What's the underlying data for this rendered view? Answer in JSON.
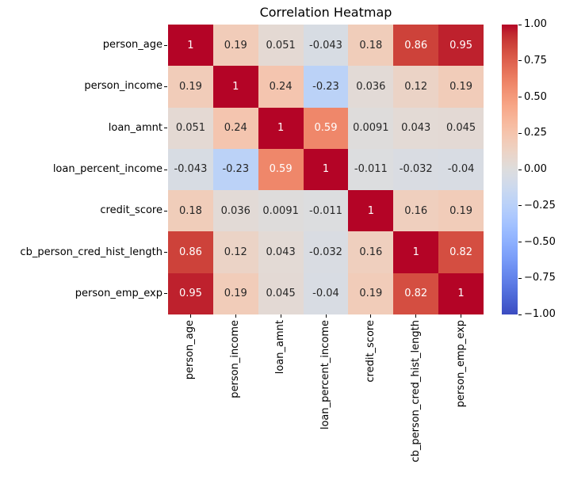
{
  "title": "Correlation Heatmap",
  "chart_data": {
    "type": "heatmap",
    "categories": [
      "person_age",
      "person_income",
      "loan_amnt",
      "loan_percent_income",
      "credit_score",
      "cb_person_cred_hist_length",
      "person_emp_exp"
    ],
    "matrix": [
      [
        1,
        0.19,
        0.051,
        -0.043,
        0.18,
        0.86,
        0.95
      ],
      [
        0.19,
        1,
        0.24,
        -0.23,
        0.036,
        0.12,
        0.19
      ],
      [
        0.051,
        0.24,
        1,
        0.59,
        0.0091,
        0.043,
        0.045
      ],
      [
        -0.043,
        -0.23,
        0.59,
        1,
        -0.011,
        -0.032,
        -0.04
      ],
      [
        0.18,
        0.036,
        0.0091,
        -0.011,
        1,
        0.16,
        0.19
      ],
      [
        0.86,
        0.12,
        0.043,
        -0.032,
        0.16,
        1,
        0.82
      ],
      [
        0.95,
        0.19,
        0.045,
        -0.04,
        0.19,
        0.82,
        1
      ]
    ],
    "vmin": -1,
    "vmax": 1,
    "colormap": "coolwarm",
    "annotation_format": "2 significant digits",
    "colorbar_position": "right",
    "colorbar_ticks": [
      "1.00",
      "0.75",
      "0.50",
      "0.25",
      "0.00",
      "−0.25",
      "−0.50",
      "−0.75",
      "−1.00"
    ],
    "grid": false
  },
  "colors": {
    "background": "#ffffff",
    "axis_text": "#000000",
    "annotation_dark": "#262626",
    "annotation_light": "#ffffff",
    "coolwarm_rgb": [
      [
        59,
        76,
        192
      ],
      [
        68,
        90,
        204
      ],
      [
        77,
        104,
        215
      ],
      [
        87,
        117,
        225
      ],
      [
        98,
        130,
        234
      ],
      [
        108,
        142,
        241
      ],
      [
        119,
        154,
        247
      ],
      [
        130,
        165,
        251
      ],
      [
        141,
        176,
        254
      ],
      [
        152,
        185,
        255
      ],
      [
        163,
        194,
        255
      ],
      [
        174,
        201,
        253
      ],
      [
        184,
        208,
        249
      ],
      [
        194,
        213,
        244
      ],
      [
        204,
        217,
        238
      ],
      [
        213,
        219,
        230
      ],
      [
        221,
        221,
        221
      ],
      [
        229,
        216,
        209
      ],
      [
        236,
        211,
        197
      ],
      [
        241,
        204,
        185
      ],
      [
        245,
        196,
        173
      ],
      [
        247,
        187,
        160
      ],
      [
        247,
        177,
        148
      ],
      [
        247,
        166,
        135
      ],
      [
        244,
        154,
        123
      ],
      [
        241,
        141,
        111
      ],
      [
        236,
        127,
        99
      ],
      [
        229,
        112,
        88
      ],
      [
        222,
        96,
        77
      ],
      [
        213,
        80,
        66
      ],
      [
        203,
        62,
        56
      ],
      [
        192,
        40,
        47
      ],
      [
        180,
        4,
        38
      ]
    ]
  }
}
